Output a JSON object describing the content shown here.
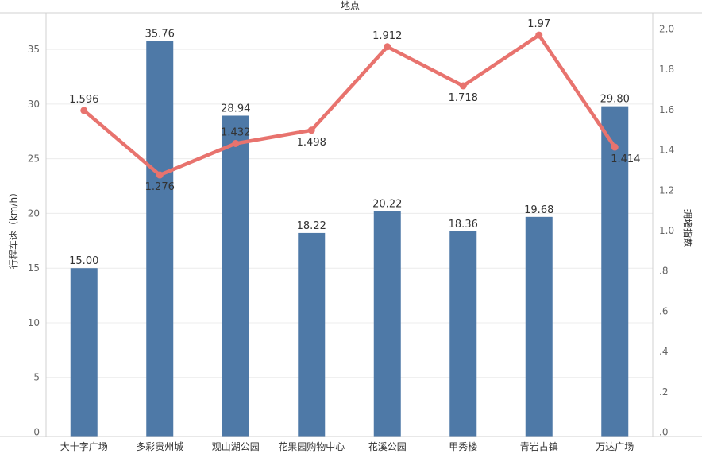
{
  "chart_data": {
    "type": "bar",
    "title": "地点",
    "categories": [
      "大十字广场",
      "多彩贵州城",
      "观山湖公园",
      "花果园购物中心",
      "花溪公园",
      "甲秀楼",
      "青岩古镇",
      "万达广场"
    ],
    "series": [
      {
        "name": "行程车速（km/h）",
        "type": "bar",
        "axis": "left",
        "values": [
          15.0,
          35.76,
          28.94,
          18.22,
          20.22,
          18.36,
          19.68,
          29.8
        ],
        "labels": [
          "15.00",
          "35.76",
          "28.94",
          "18.22",
          "20.22",
          "18.36",
          "19.68",
          "29.80"
        ],
        "color": "#4e79a7"
      },
      {
        "name": "拥堵指数",
        "type": "line",
        "axis": "right",
        "values": [
          1.596,
          1.276,
          1.432,
          1.498,
          1.912,
          1.718,
          1.97,
          1.414
        ],
        "labels": [
          "1.596",
          "1.276",
          "1.432",
          "1.498",
          "1.912",
          "1.718",
          "1.97",
          "1.414"
        ],
        "color": "#e8736e"
      }
    ],
    "ylabel": "行程车速（km/h）",
    "ylabel_right": "拥堵指数",
    "ylim": [
      0,
      38
    ],
    "ylim_right": [
      0,
      2.07
    ],
    "yticks": [
      "0",
      "5",
      "10",
      "15",
      "20",
      "25",
      "30",
      "35"
    ],
    "yticks_right": [
      ".0",
      ".2",
      ".4",
      ".6",
      ".8",
      "1.0",
      "1.2",
      "1.4",
      "1.6",
      "1.8",
      "2.0"
    ],
    "grid": true,
    "legend": "none"
  }
}
